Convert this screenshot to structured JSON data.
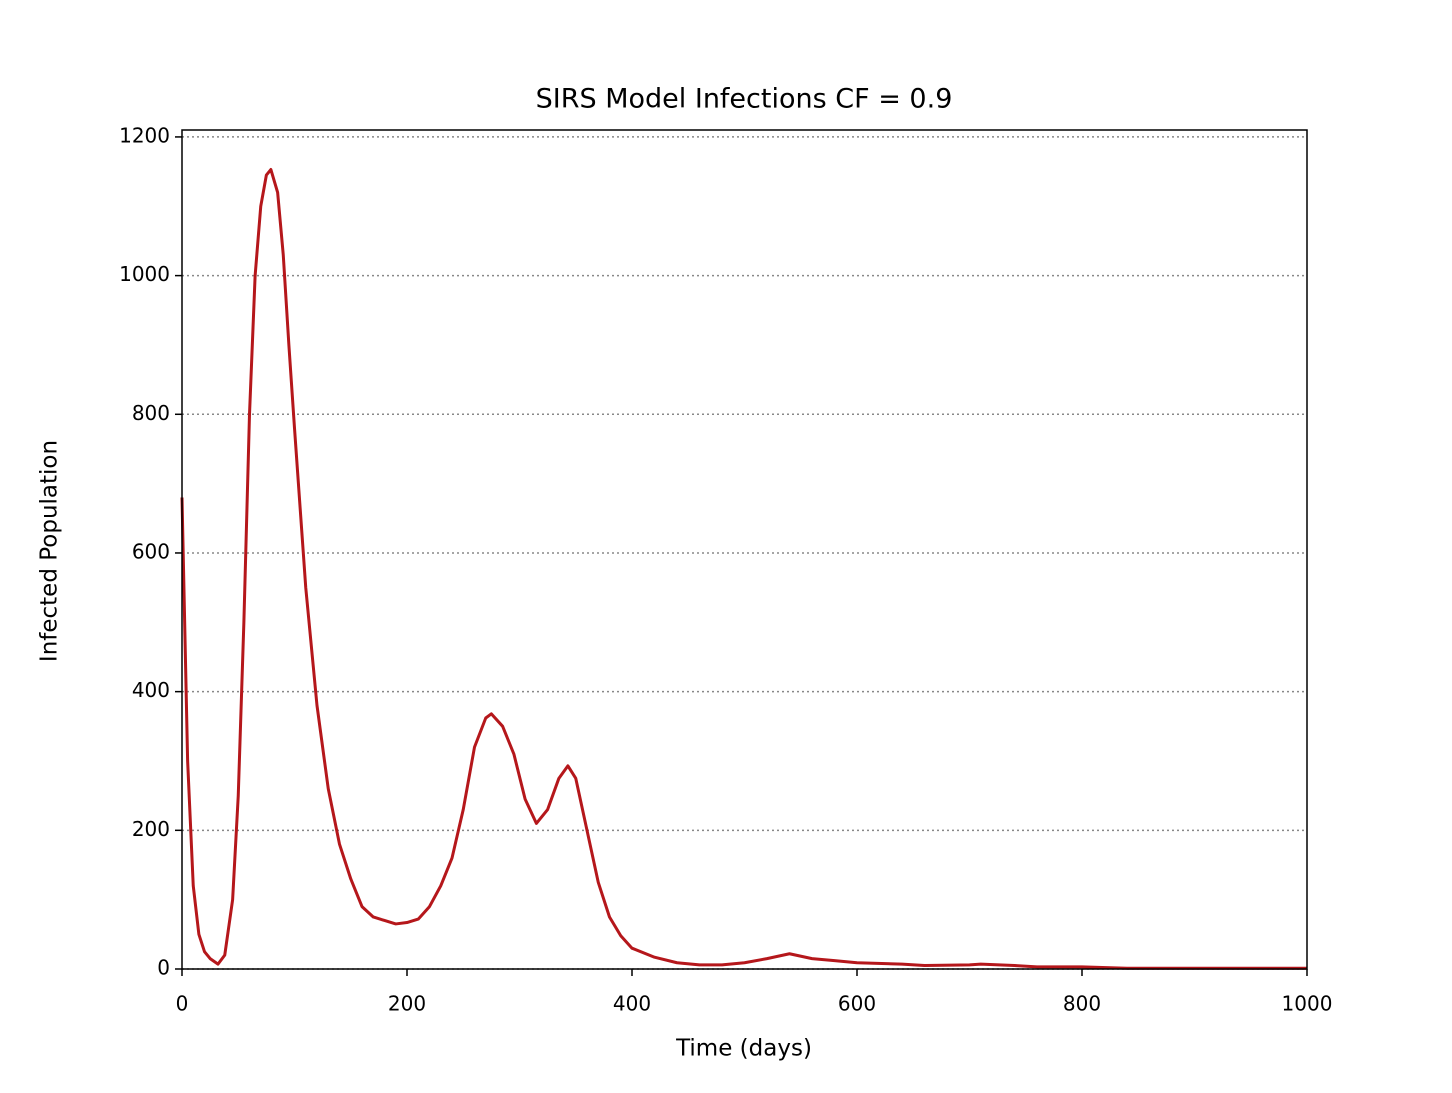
{
  "chart_data": {
    "type": "line",
    "title": "SIRS Model Infections CF = 0.9",
    "xlabel": "Time (days)",
    "ylabel": "Infected Population",
    "series": [
      {
        "color": "#b5171b",
        "x": [
          0,
          5,
          10,
          15,
          20,
          25,
          32,
          38,
          45,
          50,
          55,
          60,
          65,
          70,
          75,
          79,
          85,
          90,
          95,
          100,
          110,
          120,
          130,
          140,
          150,
          160,
          170,
          180,
          190,
          200,
          210,
          220,
          230,
          240,
          250,
          260,
          270,
          275,
          285,
          295,
          305,
          315,
          325,
          335,
          343,
          350,
          360,
          370,
          380,
          390,
          400,
          420,
          440,
          460,
          480,
          500,
          520,
          540,
          560,
          580,
          600,
          640,
          660,
          700,
          710,
          740,
          760,
          800,
          840,
          900,
          1000
        ],
        "values": [
          680,
          300,
          120,
          50,
          25,
          15,
          7,
          20,
          100,
          250,
          500,
          800,
          1000,
          1100,
          1145,
          1153,
          1120,
          1030,
          900,
          780,
          550,
          380,
          260,
          180,
          130,
          90,
          75,
          70,
          65,
          67,
          72,
          90,
          120,
          160,
          230,
          320,
          362,
          368,
          350,
          310,
          245,
          210,
          230,
          275,
          293,
          275,
          200,
          125,
          75,
          48,
          30,
          17,
          9,
          6,
          6,
          9,
          15,
          22,
          15,
          12,
          9,
          7,
          5,
          6,
          7,
          5,
          3,
          3,
          1,
          1,
          1
        ]
      }
    ],
    "xlim": [
      0,
      1000
    ],
    "xticks": [
      0,
      200,
      400,
      600,
      800,
      1000
    ],
    "ylim": [
      0,
      1210
    ],
    "yticks": [
      0,
      200,
      400,
      600,
      800,
      1000,
      1200
    ],
    "grid": true
  }
}
